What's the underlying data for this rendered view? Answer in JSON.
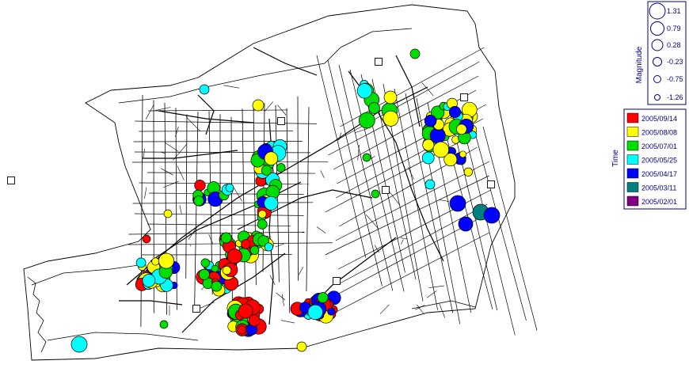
{
  "legend": {
    "magnitude": {
      "title": "Magnitude",
      "values": [
        "1.31",
        "0.79",
        "0.28",
        "-0.23",
        "-0.75",
        "-1.26"
      ]
    },
    "time": {
      "title": "Time",
      "entries": [
        {
          "label": "2005/09/14",
          "color": "#ff0000"
        },
        {
          "label": "2005/08/08",
          "color": "#ffff00"
        },
        {
          "label": "2005/07/01",
          "color": "#00dd00"
        },
        {
          "label": "2005/05/25",
          "color": "#00ffff"
        },
        {
          "label": "2005/04/17",
          "color": "#0000ff"
        },
        {
          "label": "2005/03/11",
          "color": "#008080"
        },
        {
          "label": "2005/02/01",
          "color": "#800080"
        }
      ]
    }
  },
  "colors": {
    "outline": "#000000",
    "legend_border": "#000080",
    "legend_text": "#000080"
  }
}
